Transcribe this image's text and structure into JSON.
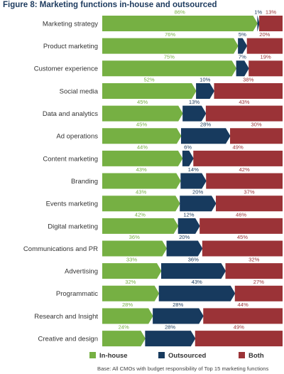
{
  "title": "Figure 8: Marketing functions in-house and outsourced",
  "note": "Base: All CMOs with budget responsibility of Top 15 marketing functions",
  "colors": {
    "inhouse": "#76b043",
    "outsourced": "#173a5e",
    "both": "#9b3337"
  },
  "chart_data": {
    "type": "bar",
    "orientation": "horizontal",
    "stacked": true,
    "categories": [
      "Marketing strategy",
      "Product marketing",
      "Customer experience",
      "Social media",
      "Data and analytics",
      "Ad operations",
      "Content marketing",
      "Branding",
      "Events marketing",
      "Digital marketing",
      "Communications and PR",
      "Advertising",
      "Programmatic",
      "Research and Insight",
      "Creative and design"
    ],
    "series": [
      {
        "name": "In-house",
        "values": [
          86,
          76,
          75,
          52,
          45,
          45,
          44,
          43,
          43,
          42,
          36,
          33,
          32,
          28,
          24
        ],
        "labels": [
          "86%",
          "76%",
          "75%",
          "52%",
          "45%",
          "45%",
          "44%",
          "43%",
          "43%",
          "42%",
          "36%",
          "33%",
          "32%",
          "28%",
          "24%"
        ]
      },
      {
        "name": "Outsourced",
        "values": [
          1,
          5,
          7,
          10,
          13,
          28,
          6,
          14,
          20,
          12,
          20,
          36,
          43,
          28,
          28
        ],
        "labels": [
          "1%",
          "5%",
          "7%",
          "10%",
          "13%",
          "28%",
          "6%",
          "14%",
          "20%",
          "12%",
          "20%",
          "36%",
          "43%",
          "28%",
          "28%"
        ]
      },
      {
        "name": "Both",
        "values": [
          13,
          20,
          19,
          38,
          43,
          30,
          49,
          42,
          37,
          46,
          45,
          32,
          27,
          44,
          49
        ],
        "labels": [
          "13%",
          "20%",
          "19%",
          "38%",
          "43%",
          "30%",
          "49%",
          "42%",
          "37%",
          "46%",
          "45%",
          "32%",
          "27%",
          "44%",
          "49%"
        ]
      }
    ],
    "xlim": [
      0,
      100
    ],
    "legend": "bottom"
  }
}
